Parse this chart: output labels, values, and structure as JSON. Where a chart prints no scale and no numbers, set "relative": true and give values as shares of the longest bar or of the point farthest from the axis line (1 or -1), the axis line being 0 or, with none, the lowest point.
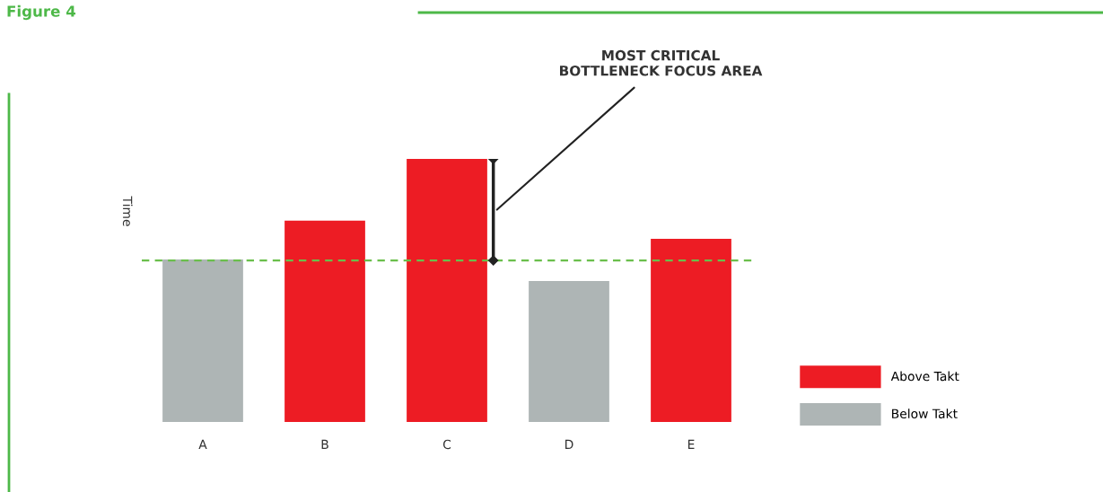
{
  "chart_data": {
    "type": "bar",
    "title": "Figure 4",
    "ylabel": "Time",
    "relative": true,
    "categories": [
      "A",
      "B",
      "C",
      "D",
      "E"
    ],
    "series": [
      {
        "name": "Above Takt",
        "color": "#ed1c24",
        "values": [
          null,
          0.765,
          1,
          null,
          0.696
        ]
      },
      {
        "name": "Below Takt",
        "color": "#aeb5b5",
        "values": [
          0.618,
          null,
          null,
          0.536,
          null
        ]
      }
    ],
    "ref_lines": [
      {
        "axis": "y",
        "value": 0.614,
        "color": "#6abf4b",
        "line_style": "dashed"
      }
    ],
    "annotations": [
      "MOST CRITICAL\nBOTTLENECK FOCUS AREA"
    ],
    "legend": "right",
    "grid": false
  }
}
